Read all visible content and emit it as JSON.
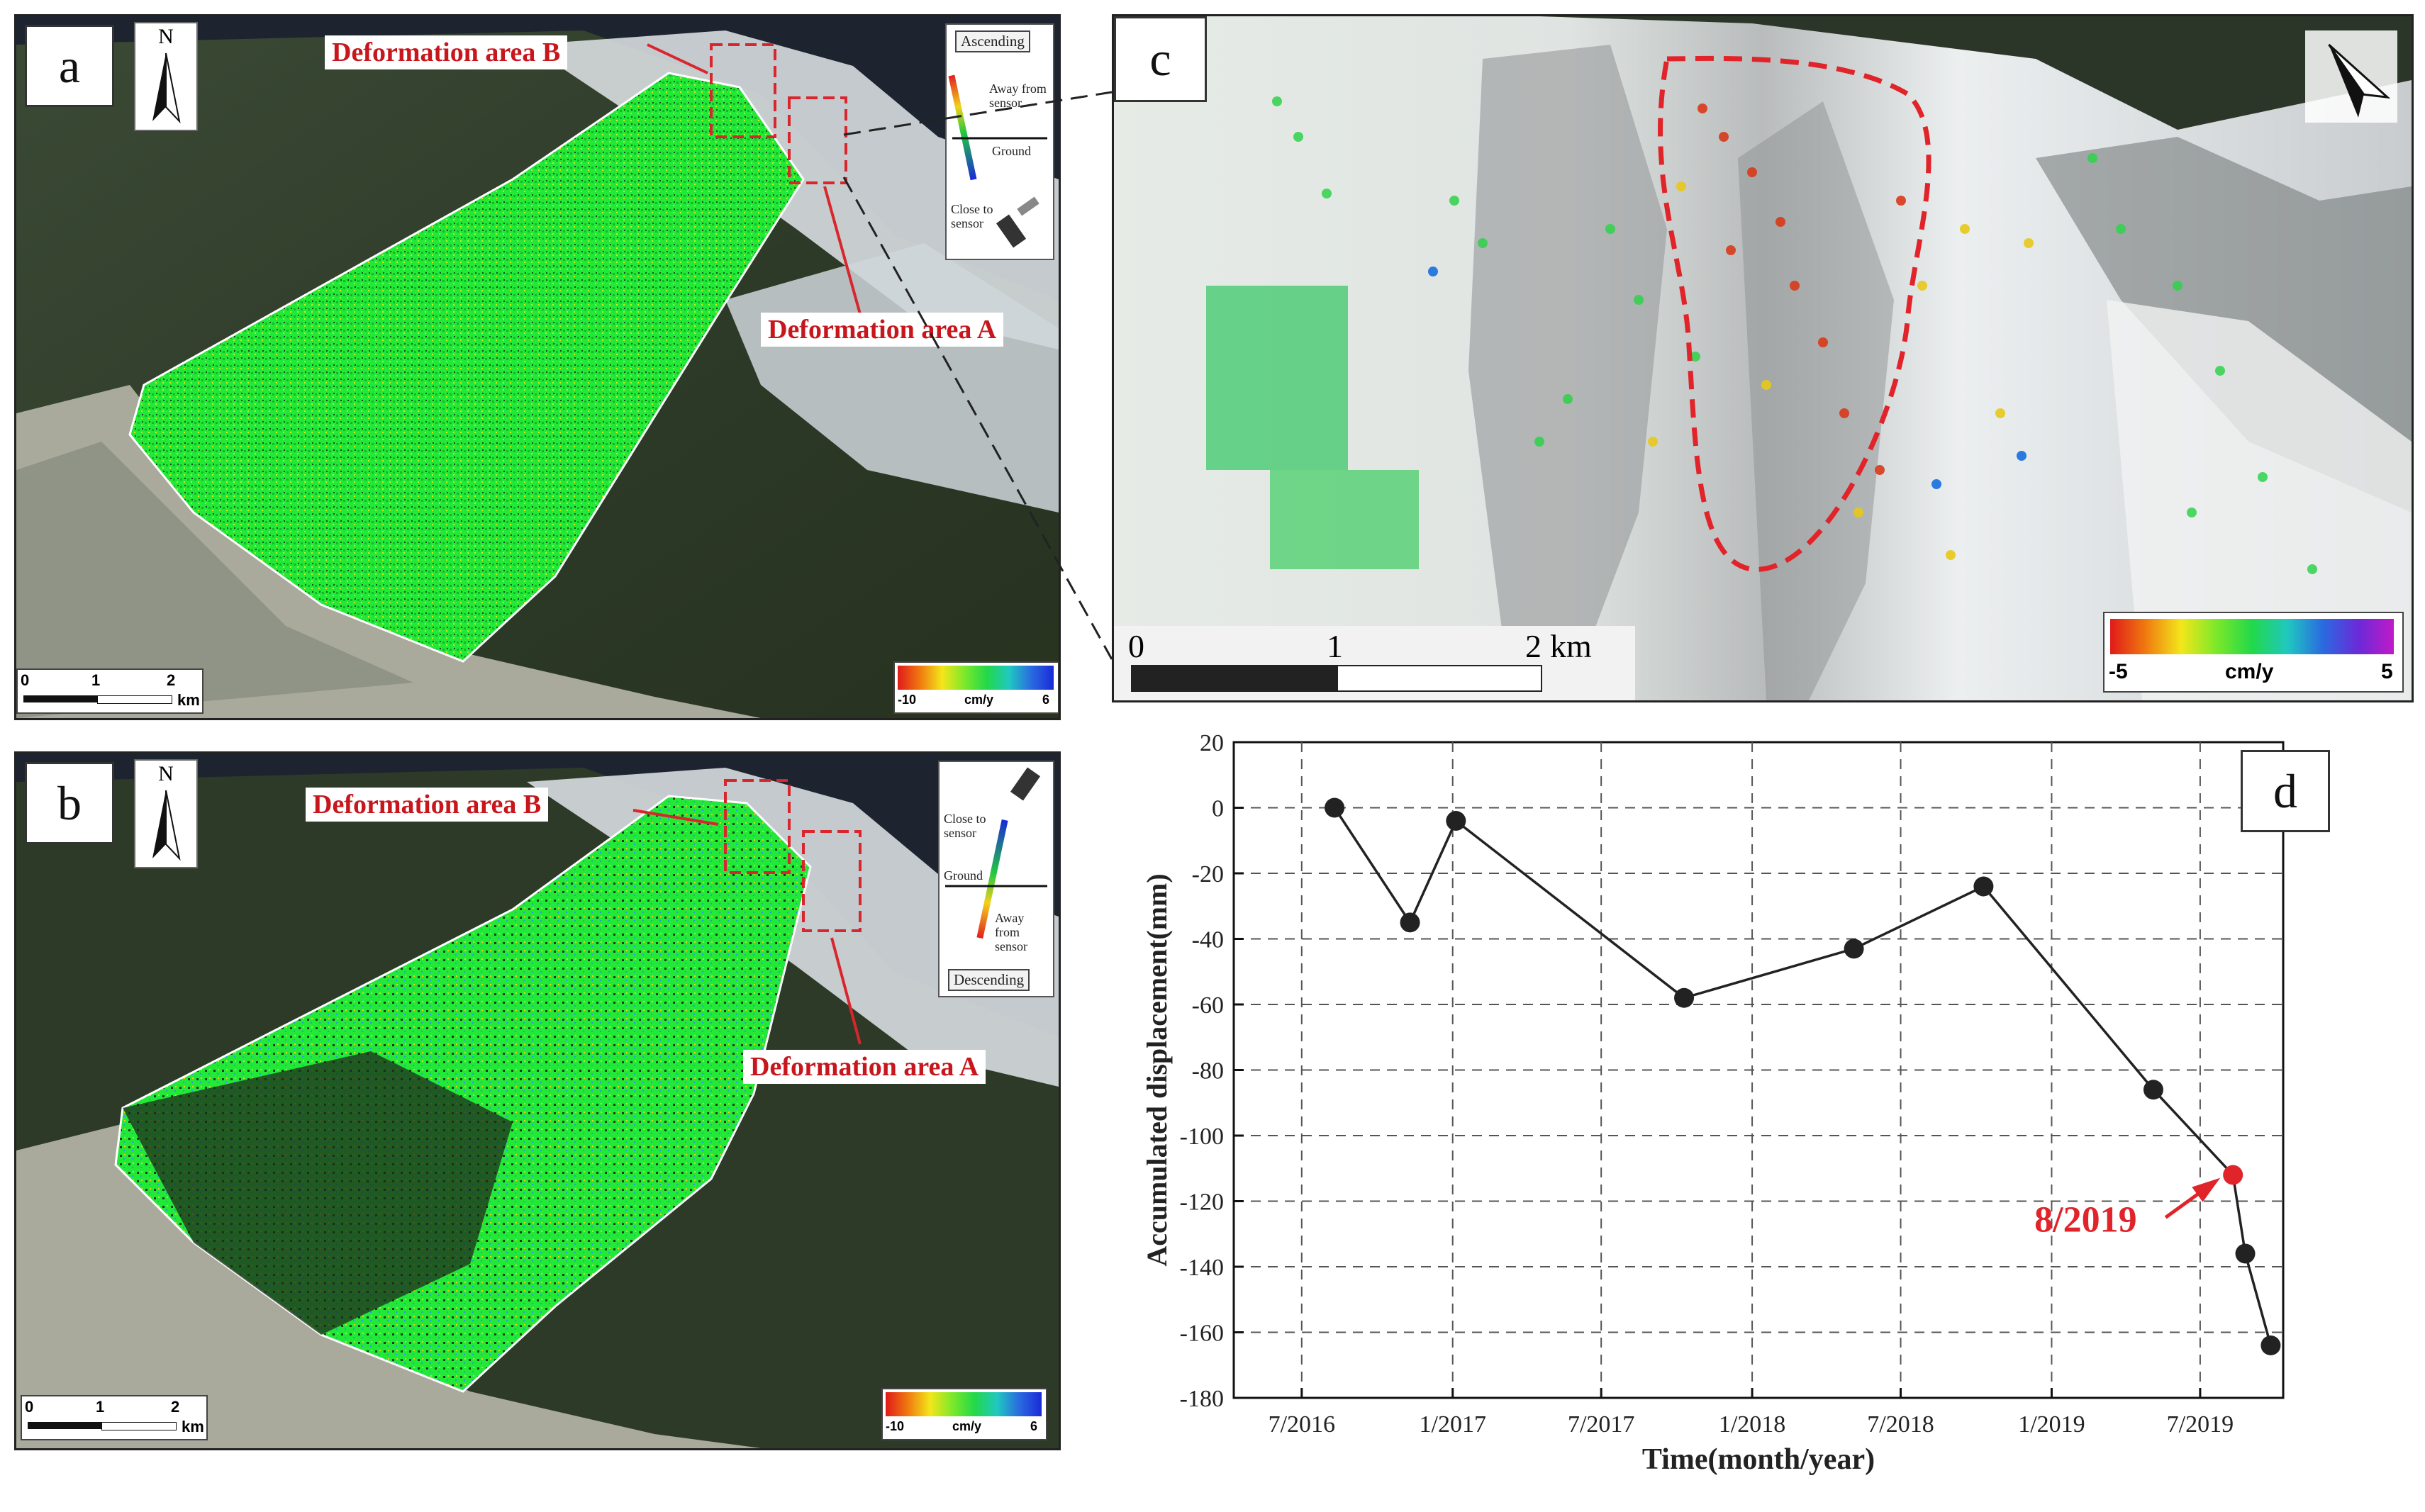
{
  "panels": {
    "a": {
      "label": "a",
      "north": "N",
      "callout_b": "Deformation area B",
      "callout_a": "Deformation area A",
      "orbit": "Ascending",
      "away": "Away from sensor",
      "ground": "Ground",
      "close": "Close to sensor",
      "scale": {
        "t0": "0",
        "t1": "1",
        "t2": "2",
        "unit": "km"
      },
      "colorbar": {
        "min": "-10",
        "unit": "cm/y",
        "max": "6"
      }
    },
    "b": {
      "label": "b",
      "north": "N",
      "callout_b": "Deformation area B",
      "callout_a": "Deformation area A",
      "orbit": "Descending",
      "away": "Away from sensor",
      "ground": "Ground",
      "close": "Close to sensor",
      "scale": {
        "t0": "0",
        "t1": "1",
        "t2": "2",
        "unit": "km"
      },
      "colorbar": {
        "min": "-10",
        "unit": "cm/y",
        "max": "6"
      }
    },
    "c": {
      "label": "c",
      "scale": {
        "t0": "0",
        "t1": "1",
        "t2": "2",
        "unit": "km"
      },
      "colorbar": {
        "min": "-5",
        "unit": "cm/y",
        "max": "5"
      }
    },
    "d": {
      "label": "d"
    }
  },
  "colors": {
    "callout": "#c8161d",
    "deformation_green": "#22e838",
    "snow": "#e8ecee",
    "forest": "#2f3a2a",
    "river": "#b6b8ae",
    "highlight_point": "#e0242a"
  },
  "chart_data": {
    "type": "line",
    "xlabel": "Time(month/year)",
    "ylabel": "Accumulated displacement(mm)",
    "xticks": [
      "7/2016",
      "1/2017",
      "7/2017",
      "1/2018",
      "7/2018",
      "1/2019",
      "7/2019"
    ],
    "ylim": [
      -180,
      20
    ],
    "yticks": [
      20,
      0,
      -20,
      -40,
      -60,
      -80,
      -100,
      -120,
      -140,
      -160,
      -180
    ],
    "grid": true,
    "series": [
      {
        "x": [
          "2016-08-10",
          "2016-11-10",
          "2017-01-05",
          "2017-10-10",
          "2018-05-05",
          "2018-10-10",
          "2019-05-05",
          "2019-08-10",
          "2019-08-25",
          "2019-09-25"
        ],
        "y": [
          0,
          -35,
          -4,
          -58,
          -43,
          -24,
          -86,
          -112,
          -136,
          -164
        ]
      }
    ],
    "annotation": {
      "text": "8/2019",
      "x": "2019-08-10",
      "y": -112
    }
  }
}
